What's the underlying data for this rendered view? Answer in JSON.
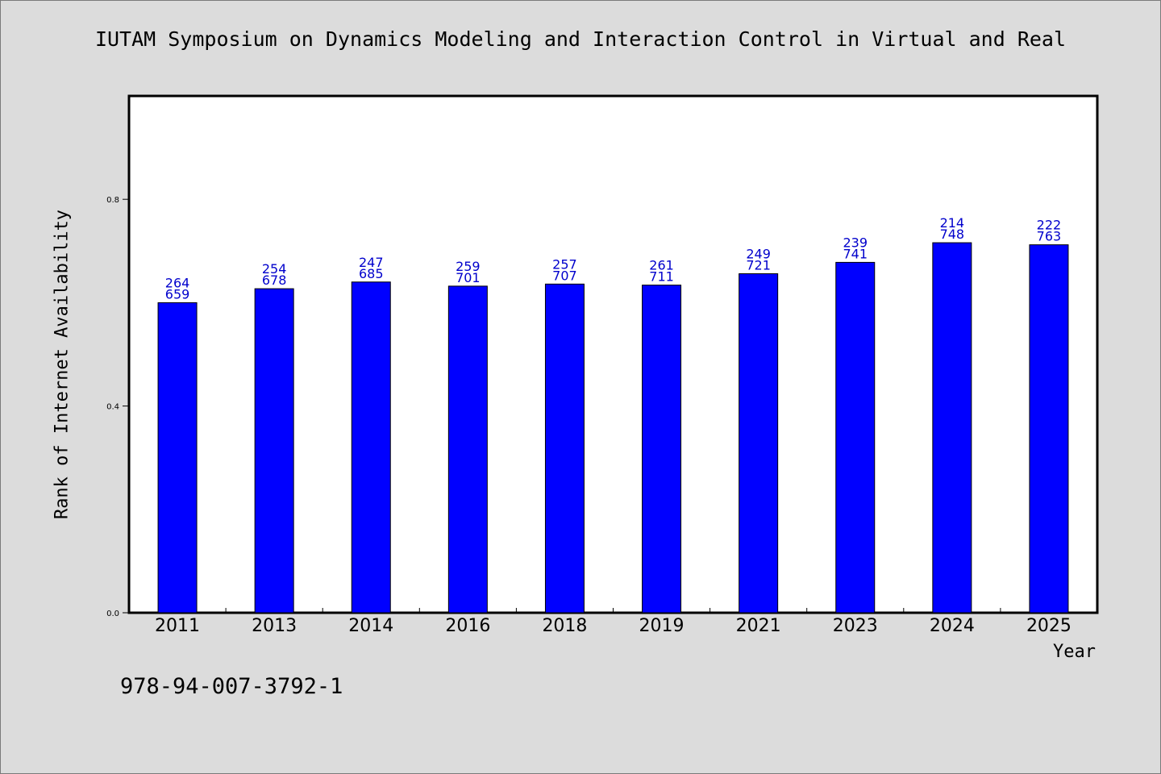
{
  "chart_data": {
    "type": "bar",
    "title": "IUTAM Symposium on Dynamics Modeling and Interaction Control in Virtual and Real",
    "xlabel": "Year",
    "ylabel": "Rank of Internet Availability",
    "categories": [
      "2011",
      "2013",
      "2014",
      "2016",
      "2018",
      "2019",
      "2021",
      "2023",
      "2024",
      "2025"
    ],
    "series": [
      {
        "values": [
          0.6,
          0.627,
          0.64,
          0.632,
          0.636,
          0.634,
          0.656,
          0.678,
          0.716,
          0.712
        ],
        "labels_top": [
          "264",
          "254",
          "247",
          "259",
          "257",
          "261",
          "249",
          "239",
          "214",
          "222"
        ],
        "labels_bottom": [
          "659",
          "678",
          "685",
          "701",
          "707",
          "711",
          "721",
          "741",
          "748",
          "763"
        ]
      }
    ],
    "ylim": [
      0,
      1.0
    ],
    "yticks": [
      "0.0",
      "0.4",
      "0.8"
    ],
    "bar_color": "#0000ff",
    "label_color": "#0000cc",
    "grid": false,
    "legend": "none"
  },
  "footer": {
    "text": "978-94-007-3792-1"
  }
}
